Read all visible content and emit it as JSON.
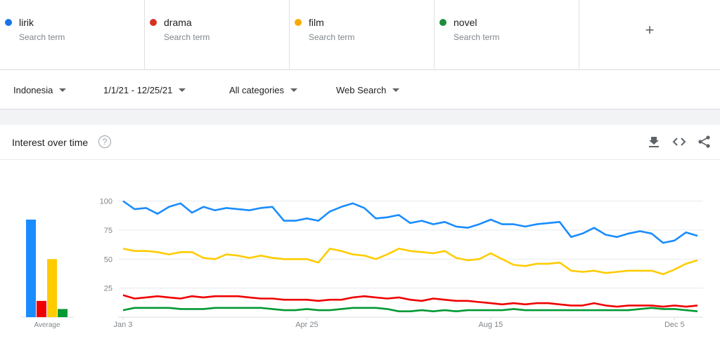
{
  "terms": [
    {
      "name": "lirik",
      "sub": "Search term",
      "color": "#1a73e8"
    },
    {
      "name": "drama",
      "sub": "Search term",
      "color": "#d93025"
    },
    {
      "name": "film",
      "sub": "Search term",
      "color": "#f9ab00"
    },
    {
      "name": "novel",
      "sub": "Search term",
      "color": "#1e8e3e"
    }
  ],
  "add_term": "+",
  "filters": {
    "region": "Indonesia",
    "date_range": "1/1/21 - 12/25/21",
    "category": "All categories",
    "search_type": "Web Search"
  },
  "card": {
    "title": "Interest over time",
    "help": "?",
    "icons": [
      "download-icon",
      "embed-icon",
      "share-icon"
    ]
  },
  "chart_data": {
    "type": "line",
    "yticks": [
      25,
      50,
      75,
      100
    ],
    "ylim": [
      0,
      100
    ],
    "xticks": [
      "Jan 3",
      "Apr 25",
      "Aug 15",
      "Dec 5"
    ],
    "average_label": "Average",
    "averages": [
      84,
      14,
      50,
      7
    ],
    "series": [
      {
        "name": "lirik",
        "color": "#1a8cff",
        "values": [
          100,
          93,
          94,
          89,
          95,
          98,
          90,
          95,
          92,
          94,
          93,
          92,
          94,
          95,
          83,
          83,
          85,
          83,
          91,
          95,
          98,
          94,
          85,
          86,
          88,
          81,
          83,
          80,
          82,
          78,
          77,
          80,
          84,
          80,
          80,
          78,
          80,
          81,
          82,
          69,
          72,
          77,
          71,
          69,
          72,
          74,
          72,
          64,
          66,
          73,
          70
        ]
      },
      {
        "name": "drama",
        "color": "#f00000",
        "values": [
          19,
          16,
          17,
          18,
          17,
          16,
          18,
          17,
          18,
          18,
          18,
          17,
          16,
          16,
          15,
          15,
          15,
          14,
          15,
          15,
          17,
          18,
          17,
          16,
          17,
          15,
          14,
          16,
          15,
          14,
          14,
          13,
          12,
          11,
          12,
          11,
          12,
          12,
          11,
          10,
          10,
          12,
          10,
          9,
          10,
          10,
          10,
          9,
          10,
          9,
          10
        ]
      },
      {
        "name": "film",
        "color": "#ffcc00",
        "values": [
          59,
          57,
          57,
          56,
          54,
          56,
          56,
          51,
          50,
          54,
          53,
          51,
          53,
          51,
          50,
          50,
          50,
          47,
          59,
          57,
          54,
          53,
          50,
          54,
          59,
          57,
          56,
          55,
          57,
          51,
          49,
          50,
          55,
          50,
          45,
          44,
          46,
          46,
          47,
          40,
          39,
          40,
          38,
          39,
          40,
          40,
          40,
          37,
          41,
          46,
          49
        ]
      },
      {
        "name": "novel",
        "color": "#009933",
        "values": [
          6,
          8,
          8,
          8,
          8,
          7,
          7,
          7,
          8,
          8,
          8,
          8,
          8,
          7,
          6,
          6,
          7,
          6,
          6,
          7,
          8,
          8,
          8,
          7,
          5,
          5,
          6,
          5,
          6,
          5,
          6,
          6,
          6,
          6,
          7,
          6,
          6,
          6,
          6,
          6,
          6,
          6,
          6,
          6,
          6,
          7,
          8,
          7,
          7,
          6,
          5
        ]
      }
    ]
  }
}
